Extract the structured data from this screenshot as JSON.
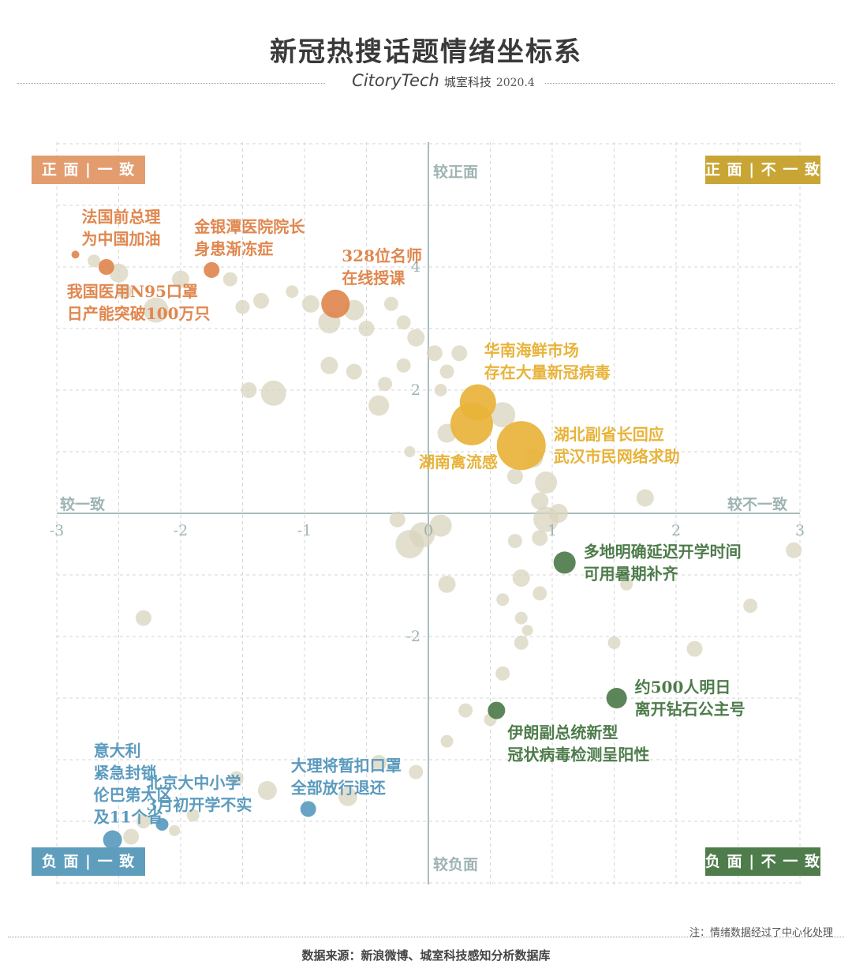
{
  "title": "新冠热搜话题情绪坐标系",
  "brand": {
    "logo": "CitoryTech",
    "name": "城室科技",
    "date": "2020.4"
  },
  "quadrants": {
    "tl": {
      "label": "正 面 | 一 致",
      "color": "#E39C6E"
    },
    "tr": {
      "label": "正 面 | 不 一 致",
      "color": "#C9A535"
    },
    "bl": {
      "label": "负 面 | 一 致",
      "color": "#5E9DBC"
    },
    "br": {
      "label": "负 面 | 不 一 致",
      "color": "#4E7C4B"
    }
  },
  "axis_words": {
    "top": "较正面",
    "bottom": "较负面",
    "left": "较一致",
    "right": "较不一致"
  },
  "note": "注：情绪数据经过了中心化处理",
  "source": "数据来源：新浪微博、城室科技感知分析数据库",
  "colors": {
    "background_bubble": "#D9D4BE",
    "orange": "#E0874F",
    "gold": "#E8B33A",
    "green": "#4E7C4B",
    "blue": "#5B9BBE",
    "axis": "#A8BDBD"
  },
  "chart_data": {
    "type": "scatter",
    "xlim": [
      -3,
      3
    ],
    "ylim": [
      -6,
      6
    ],
    "x_ticks": [
      -3,
      -2,
      -1,
      0,
      1,
      2,
      3
    ],
    "y_ticks": [
      -2,
      2,
      4
    ],
    "grid": true,
    "highlights": [
      {
        "label": [
          "法国前总理",
          "为中国加油"
        ],
        "x": -2.85,
        "y": 4.2,
        "r": 5,
        "color": "orange",
        "label_pos": "above-right"
      },
      {
        "label": [
          "我国医用N95口罩",
          "日产能突破100万只"
        ],
        "x": -2.6,
        "y": 4.0,
        "r": 10,
        "color": "orange",
        "label_pos": "below"
      },
      {
        "label": [
          "金银潭医院院长",
          "身患渐冻症"
        ],
        "x": -1.75,
        "y": 3.95,
        "r": 10,
        "color": "orange",
        "label_pos": "above"
      },
      {
        "label": [
          "328位名师",
          "在线授课"
        ],
        "x": -0.75,
        "y": 3.4,
        "r": 18,
        "color": "orange",
        "label_pos": "above-right"
      },
      {
        "label": [
          "华南海鲜市场",
          "存在大量新冠病毒"
        ],
        "x": 0.4,
        "y": 1.8,
        "r": 23,
        "color": "gold",
        "label_pos": "above-right"
      },
      {
        "label": [
          "湖北副省长回应",
          "武汉市民网络求助"
        ],
        "x": 0.75,
        "y": 1.1,
        "r": 31,
        "color": "gold",
        "label_pos": "right"
      },
      {
        "label": [
          "湖南禽流感"
        ],
        "x": 0.35,
        "y": 1.45,
        "r": 27,
        "color": "gold",
        "label_pos": "below"
      },
      {
        "label": [
          "多地明确延迟开学时间",
          "可用暑期补齐"
        ],
        "x": 1.1,
        "y": -0.8,
        "r": 14,
        "color": "green",
        "label_pos": "right"
      },
      {
        "label": [
          "约500人明日",
          "离开钻石公主号"
        ],
        "x": 1.52,
        "y": -3.0,
        "r": 13,
        "color": "green",
        "label_pos": "right"
      },
      {
        "label": [
          "伊朗副总统新型",
          "冠状病毒检测呈阳性"
        ],
        "x": 0.55,
        "y": -3.2,
        "r": 11,
        "color": "green",
        "label_pos": "below-right"
      },
      {
        "label": [
          "大理将暂扣口罩",
          "全部放行退还"
        ],
        "x": -0.97,
        "y": -4.8,
        "r": 10,
        "color": "blue",
        "label_pos": "above"
      },
      {
        "label": [
          "北京大中小学",
          "3月初开学不实"
        ],
        "x": -2.15,
        "y": -5.05,
        "r": 8,
        "color": "blue",
        "label_pos": "above"
      },
      {
        "label": [
          "意大利",
          "紧急封锁",
          "伦巴第大区",
          "及11个省"
        ],
        "x": -2.55,
        "y": -5.3,
        "r": 12,
        "color": "blue",
        "label_pos": "above"
      }
    ],
    "background": [
      {
        "x": -2.7,
        "y": 4.1,
        "r": 8
      },
      {
        "x": -2.5,
        "y": 3.9,
        "r": 12
      },
      {
        "x": -2.2,
        "y": 3.3,
        "r": 16
      },
      {
        "x": -2.0,
        "y": 3.8,
        "r": 11
      },
      {
        "x": -1.6,
        "y": 3.8,
        "r": 9
      },
      {
        "x": -1.5,
        "y": 3.35,
        "r": 9
      },
      {
        "x": -1.35,
        "y": 3.45,
        "r": 10
      },
      {
        "x": -1.1,
        "y": 3.6,
        "r": 8
      },
      {
        "x": -0.95,
        "y": 3.4,
        "r": 11
      },
      {
        "x": -0.8,
        "y": 3.1,
        "r": 14
      },
      {
        "x": -0.6,
        "y": 3.3,
        "r": 13
      },
      {
        "x": -0.5,
        "y": 3.0,
        "r": 10
      },
      {
        "x": -0.3,
        "y": 3.4,
        "r": 9
      },
      {
        "x": -0.2,
        "y": 3.1,
        "r": 9
      },
      {
        "x": -0.1,
        "y": 2.85,
        "r": 11
      },
      {
        "x": -0.2,
        "y": 2.4,
        "r": 9
      },
      {
        "x": 0.05,
        "y": 2.6,
        "r": 10
      },
      {
        "x": 0.15,
        "y": 2.3,
        "r": 9
      },
      {
        "x": -0.35,
        "y": 2.1,
        "r": 9
      },
      {
        "x": -0.6,
        "y": 2.3,
        "r": 10
      },
      {
        "x": -0.8,
        "y": 2.4,
        "r": 11
      },
      {
        "x": -1.45,
        "y": 2.0,
        "r": 10
      },
      {
        "x": -1.25,
        "y": 1.95,
        "r": 16
      },
      {
        "x": -0.4,
        "y": 1.75,
        "r": 13
      },
      {
        "x": 0.1,
        "y": 2.0,
        "r": 8
      },
      {
        "x": 0.25,
        "y": 2.6,
        "r": 10
      },
      {
        "x": 0.6,
        "y": 1.6,
        "r": 16
      },
      {
        "x": 0.15,
        "y": 1.3,
        "r": 12
      },
      {
        "x": -0.15,
        "y": 1.0,
        "r": 7
      },
      {
        "x": 0.85,
        "y": 0.9,
        "r": 12
      },
      {
        "x": 0.95,
        "y": 0.5,
        "r": 14
      },
      {
        "x": 0.7,
        "y": 0.6,
        "r": 10
      },
      {
        "x": 0.9,
        "y": 0.2,
        "r": 11
      },
      {
        "x": 1.75,
        "y": 0.25,
        "r": 11
      },
      {
        "x": 1.05,
        "y": 0.0,
        "r": 12
      },
      {
        "x": 0.95,
        "y": -0.1,
        "r": 16
      },
      {
        "x": 0.9,
        "y": -0.4,
        "r": 10
      },
      {
        "x": 0.7,
        "y": -0.45,
        "r": 9
      },
      {
        "x": -0.15,
        "y": -0.5,
        "r": 18
      },
      {
        "x": -0.05,
        "y": -0.35,
        "r": 16
      },
      {
        "x": 0.1,
        "y": -0.2,
        "r": 14
      },
      {
        "x": -0.25,
        "y": -0.1,
        "r": 10
      },
      {
        "x": 0.15,
        "y": -1.15,
        "r": 11
      },
      {
        "x": 0.75,
        "y": -1.05,
        "r": 11
      },
      {
        "x": 0.9,
        "y": -1.3,
        "r": 9
      },
      {
        "x": 0.6,
        "y": -1.4,
        "r": 8
      },
      {
        "x": 0.75,
        "y": -1.7,
        "r": 8
      },
      {
        "x": 0.8,
        "y": -1.9,
        "r": 7
      },
      {
        "x": 0.75,
        "y": -2.1,
        "r": 9
      },
      {
        "x": 1.6,
        "y": -1.15,
        "r": 8
      },
      {
        "x": 2.6,
        "y": -1.5,
        "r": 9
      },
      {
        "x": 2.95,
        "y": -0.6,
        "r": 10
      },
      {
        "x": 1.5,
        "y": -2.1,
        "r": 8
      },
      {
        "x": 2.15,
        "y": -2.2,
        "r": 10
      },
      {
        "x": 0.6,
        "y": -2.6,
        "r": 9
      },
      {
        "x": 0.3,
        "y": -3.2,
        "r": 9
      },
      {
        "x": 0.5,
        "y": -3.35,
        "r": 8
      },
      {
        "x": 0.15,
        "y": -3.7,
        "r": 8
      },
      {
        "x": -0.1,
        "y": -4.2,
        "r": 9
      },
      {
        "x": -0.4,
        "y": -4.05,
        "r": 10
      },
      {
        "x": -0.65,
        "y": -4.6,
        "r": 12
      },
      {
        "x": -1.3,
        "y": -4.5,
        "r": 12
      },
      {
        "x": -1.55,
        "y": -4.3,
        "r": 9
      },
      {
        "x": -1.9,
        "y": -4.9,
        "r": 8
      },
      {
        "x": -2.3,
        "y": -5.0,
        "r": 9
      },
      {
        "x": -2.05,
        "y": -5.15,
        "r": 7
      },
      {
        "x": -2.4,
        "y": -5.25,
        "r": 10
      },
      {
        "x": -2.3,
        "y": -1.7,
        "r": 10
      },
      {
        "x": -2.45,
        "y": 3.6,
        "r": 9
      }
    ]
  }
}
